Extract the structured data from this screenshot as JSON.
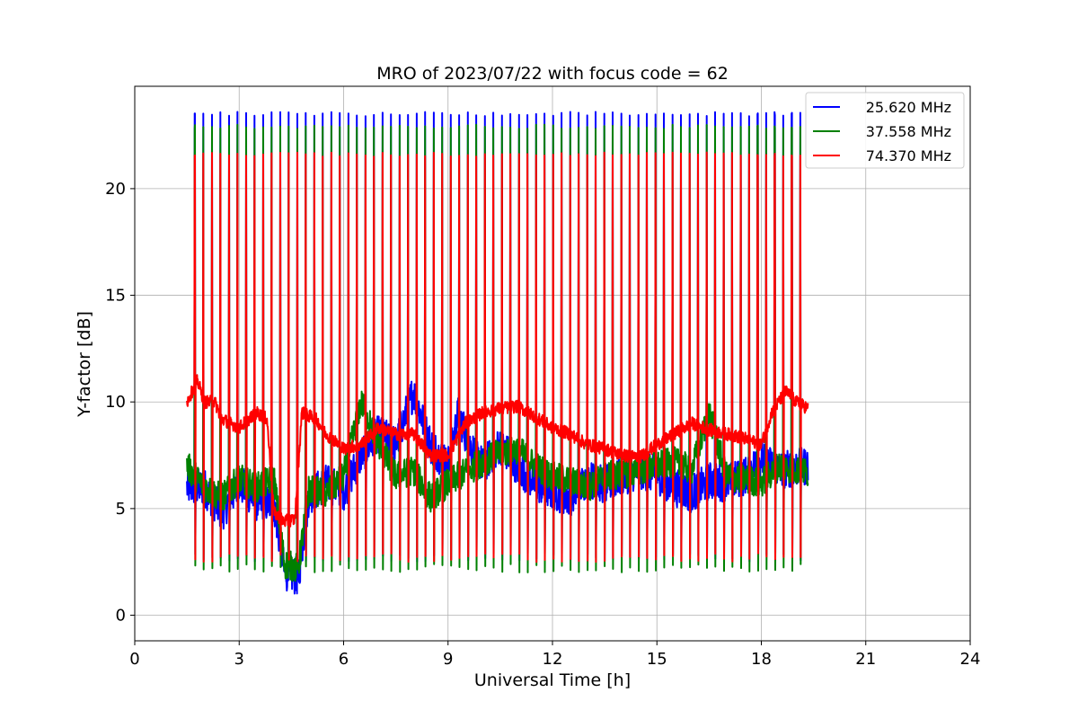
{
  "chart_data": {
    "type": "line",
    "title": "MRO of 2023/07/22 with focus code = 62",
    "xlabel": "Universal Time [h]",
    "ylabel": "Y-factor [dB]",
    "xlim": [
      0,
      24
    ],
    "ylim": [
      -1.2,
      24.8
    ],
    "xticks": [
      0,
      3,
      6,
      9,
      12,
      15,
      18,
      21,
      24
    ],
    "yticks": [
      0,
      5,
      10,
      15,
      20
    ],
    "grid": true,
    "legend_position": "top-right",
    "data_start_hour": 1.5,
    "data_end_hour": 19.35,
    "series": [
      {
        "name": "25.620 MHz",
        "color": "#0000ff",
        "spike_peak_y": 23.6,
        "spike_trough_y": 2.5,
        "baseline": [
          [
            1.5,
            6.0
          ],
          [
            2.0,
            6.0
          ],
          [
            2.5,
            4.8
          ],
          [
            3.0,
            6.2
          ],
          [
            3.5,
            5.3
          ],
          [
            4.0,
            5.2
          ],
          [
            4.3,
            2.0
          ],
          [
            4.7,
            1.8
          ],
          [
            5.0,
            5.6
          ],
          [
            5.5,
            6.2
          ],
          [
            6.0,
            5.8
          ],
          [
            6.5,
            7.5
          ],
          [
            7.0,
            8.5
          ],
          [
            7.5,
            8.0
          ],
          [
            8.0,
            10.5
          ],
          [
            8.5,
            8.0
          ],
          [
            9.0,
            7.0
          ],
          [
            9.3,
            9.5
          ],
          [
            9.6,
            8.0
          ],
          [
            10.0,
            7.0
          ],
          [
            10.5,
            8.0
          ],
          [
            11.0,
            7.0
          ],
          [
            11.5,
            6.2
          ],
          [
            12.0,
            5.8
          ],
          [
            12.5,
            5.5
          ],
          [
            13.0,
            6.4
          ],
          [
            13.5,
            6.1
          ],
          [
            14.0,
            6.5
          ],
          [
            14.5,
            6.8
          ],
          [
            15.0,
            6.6
          ],
          [
            15.5,
            6.0
          ],
          [
            16.0,
            5.7
          ],
          [
            16.5,
            6.3
          ],
          [
            17.0,
            6.2
          ],
          [
            17.5,
            6.5
          ],
          [
            18.0,
            7.3
          ],
          [
            18.5,
            6.8
          ],
          [
            19.35,
            7.0
          ]
        ]
      },
      {
        "name": "37.558 MHz",
        "color": "#008000",
        "spike_peak_y": 23.0,
        "spike_trough_y": 2.0,
        "baseline": [
          [
            1.5,
            7.0
          ],
          [
            2.0,
            6.0
          ],
          [
            2.5,
            5.5
          ],
          [
            3.0,
            6.4
          ],
          [
            3.5,
            6.0
          ],
          [
            4.0,
            6.4
          ],
          [
            4.3,
            2.4
          ],
          [
            4.7,
            2.2
          ],
          [
            5.0,
            5.9
          ],
          [
            5.5,
            5.7
          ],
          [
            6.0,
            6.5
          ],
          [
            6.5,
            10.0
          ],
          [
            7.0,
            8.0
          ],
          [
            7.5,
            6.5
          ],
          [
            8.0,
            6.8
          ],
          [
            8.5,
            5.5
          ],
          [
            9.0,
            6.2
          ],
          [
            9.5,
            6.7
          ],
          [
            10.0,
            7.2
          ],
          [
            10.5,
            7.6
          ],
          [
            11.0,
            7.8
          ],
          [
            11.5,
            7.0
          ],
          [
            12.0,
            6.5
          ],
          [
            12.5,
            6.3
          ],
          [
            13.0,
            6.0
          ],
          [
            13.5,
            6.5
          ],
          [
            14.0,
            6.6
          ],
          [
            14.5,
            6.8
          ],
          [
            15.0,
            7.0
          ],
          [
            15.5,
            7.2
          ],
          [
            16.0,
            6.8
          ],
          [
            16.5,
            9.5
          ],
          [
            17.0,
            6.5
          ],
          [
            17.5,
            6.4
          ],
          [
            18.0,
            6.2
          ],
          [
            18.5,
            7.0
          ],
          [
            19.35,
            6.7
          ]
        ]
      },
      {
        "name": "74.370 MHz",
        "color": "#ff0000",
        "spike_peak_y": 21.7,
        "spike_trough_y": 2.5,
        "baseline": [
          [
            1.5,
            10.0
          ],
          [
            1.8,
            11.0
          ],
          [
            2.0,
            10.0
          ],
          [
            2.3,
            10.0
          ],
          [
            2.5,
            9.2
          ],
          [
            3.0,
            8.8
          ],
          [
            3.5,
            9.5
          ],
          [
            3.8,
            9.2
          ],
          [
            4.0,
            4.8
          ],
          [
            4.3,
            4.4
          ],
          [
            4.6,
            4.5
          ],
          [
            4.8,
            9.5
          ],
          [
            5.2,
            9.2
          ],
          [
            5.5,
            8.5
          ],
          [
            6.0,
            7.8
          ],
          [
            6.5,
            8.0
          ],
          [
            7.0,
            8.8
          ],
          [
            7.5,
            8.5
          ],
          [
            8.0,
            8.5
          ],
          [
            8.5,
            7.5
          ],
          [
            9.0,
            7.5
          ],
          [
            9.5,
            9.0
          ],
          [
            10.0,
            9.5
          ],
          [
            10.5,
            9.7
          ],
          [
            11.0,
            9.8
          ],
          [
            11.5,
            9.3
          ],
          [
            12.0,
            8.8
          ],
          [
            12.5,
            8.5
          ],
          [
            13.0,
            8.0
          ],
          [
            13.5,
            7.8
          ],
          [
            14.0,
            7.5
          ],
          [
            14.5,
            7.4
          ],
          [
            15.0,
            8.0
          ],
          [
            15.5,
            8.5
          ],
          [
            16.0,
            9.0
          ],
          [
            16.5,
            8.7
          ],
          [
            17.0,
            8.5
          ],
          [
            17.5,
            8.3
          ],
          [
            18.0,
            8.0
          ],
          [
            18.3,
            9.5
          ],
          [
            18.7,
            10.5
          ],
          [
            19.0,
            10.0
          ],
          [
            19.35,
            9.7
          ]
        ]
      }
    ]
  }
}
